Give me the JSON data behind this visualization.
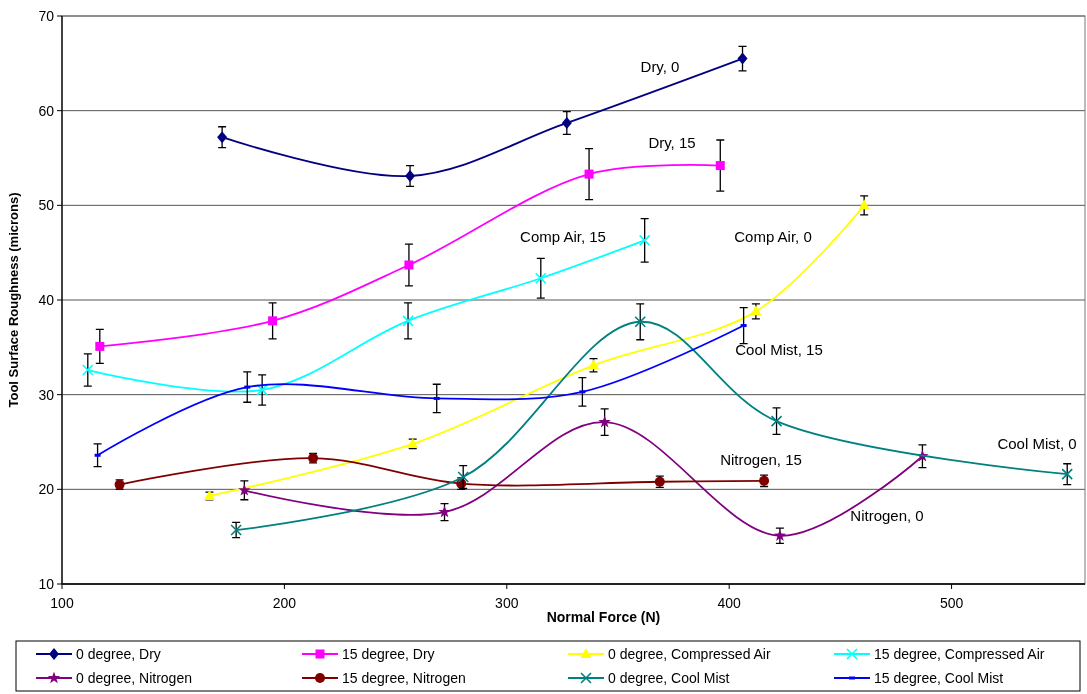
{
  "chart_data": {
    "type": "line",
    "xlabel": "Normal Force (N)",
    "ylabel": "Tool Surface Roughness (microns)",
    "xlim": [
      100,
      560
    ],
    "xticks": [
      100,
      200,
      300,
      400,
      500
    ],
    "ylim": [
      10,
      70
    ],
    "yticks": [
      10,
      20,
      30,
      40,
      50,
      60,
      70
    ],
    "grid": "y",
    "legend": "bottom",
    "series": [
      {
        "name": "0 degree, Dry",
        "color": "#000080",
        "marker": "diamond",
        "x": [
          172,
          256.5,
          327,
          406
        ],
        "values": [
          57.2,
          53.1,
          58.7,
          65.5
        ],
        "errors": [
          1.1,
          1.1,
          1.2,
          1.3
        ]
      },
      {
        "name": "15 degree, Dry",
        "color": "#ff00ff",
        "marker": "square",
        "x": [
          117,
          194.7,
          256,
          337,
          396
        ],
        "values": [
          35.1,
          37.8,
          43.7,
          53.3,
          54.2
        ],
        "errors": [
          1.8,
          1.9,
          2.2,
          2.7,
          2.7
        ]
      },
      {
        "name": "0 degree, Compressed Air",
        "color": "#ffff00",
        "marker": "triangle",
        "x": [
          166.3,
          257.7,
          339,
          412,
          460.7
        ],
        "values": [
          19.3,
          24.8,
          33.1,
          38.8,
          50.0
        ],
        "errors": [
          0.4,
          0.5,
          0.7,
          0.8,
          1.0
        ]
      },
      {
        "name": "15 degree, Compressed Air",
        "color": "#00ffff",
        "marker": "cross",
        "x": [
          111.6,
          190,
          255.6,
          315.3,
          362
        ],
        "values": [
          32.6,
          30.5,
          37.8,
          42.3,
          46.3
        ],
        "errors": [
          1.7,
          1.6,
          1.9,
          2.1,
          2.3
        ]
      },
      {
        "name": "0 degree, Nitrogen",
        "color": "#800080",
        "marker": "star",
        "x": [
          182,
          272,
          344,
          422.8,
          486.9
        ],
        "values": [
          19.9,
          17.6,
          27.1,
          15.1,
          23.5
        ],
        "errors": [
          1.0,
          0.9,
          1.4,
          0.8,
          1.2
        ]
      },
      {
        "name": "15 degree, Nitrogen",
        "color": "#800000",
        "marker": "circle",
        "x": [
          125.9,
          212.9,
          279.5,
          368.8,
          415.7
        ],
        "values": [
          20.5,
          23.3,
          20.6,
          20.8,
          20.9
        ],
        "errors": [
          0.5,
          0.5,
          0.6,
          0.6,
          0.6
        ]
      },
      {
        "name": "0 degree, Cool Mist",
        "color": "#008080",
        "marker": "cross",
        "x": [
          178.3,
          280.4,
          360,
          421.3,
          552
        ],
        "values": [
          15.7,
          21.3,
          37.7,
          27.2,
          21.6
        ],
        "errors": [
          0.8,
          1.2,
          1.9,
          1.4,
          1.1
        ]
      },
      {
        "name": "15 degree, Cool Mist",
        "color": "#0000ff",
        "marker": "square",
        "x": [
          116,
          183.3,
          268.5,
          334,
          406.5
        ],
        "values": [
          23.6,
          30.8,
          29.6,
          30.3,
          37.3
        ],
        "errors": [
          1.2,
          1.6,
          1.5,
          1.5,
          1.9
        ]
      }
    ],
    "annotations": [
      "Dry, 0",
      "Dry, 15",
      "Comp Air, 15",
      "Comp Air, 0",
      "Cool Mist, 15",
      "Cool Mist, 0",
      "Nitrogen, 15",
      "Nitrogen, 0"
    ]
  }
}
